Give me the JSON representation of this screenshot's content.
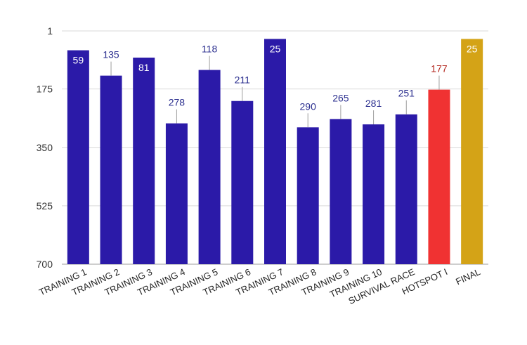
{
  "chart_data": {
    "type": "bar",
    "y_axis_reversed": true,
    "ylim": [
      1,
      700
    ],
    "y_ticks": [
      "1",
      "175",
      "350",
      "525",
      "700"
    ],
    "grid": true,
    "categories": [
      "TRAINING 1",
      "TRAINING 2",
      "TRAINING 3",
      "TRAINING 4",
      "TRAINING 5",
      "TRAINING 6",
      "TRAINING 7",
      "TRAINING 8",
      "TRAINING 9",
      "TRAINING 10",
      "SURVIVAL RACE",
      "HOTSPOT I",
      "FINAL"
    ],
    "values": [
      59,
      135,
      81,
      278,
      118,
      211,
      25,
      290,
      265,
      281,
      251,
      177,
      25
    ],
    "labels": [
      "59",
      "135",
      "81",
      "278",
      "118",
      "211",
      "25",
      "290",
      "265",
      "281",
      "251",
      "177",
      "25"
    ],
    "label_inside": [
      true,
      false,
      true,
      false,
      false,
      false,
      true,
      false,
      false,
      false,
      false,
      false,
      true
    ],
    "colors": [
      "#2b1aa8",
      "#2b1aa8",
      "#2b1aa8",
      "#2b1aa8",
      "#2b1aa8",
      "#2b1aa8",
      "#2b1aa8",
      "#2b1aa8",
      "#2b1aa8",
      "#2b1aa8",
      "#2b1aa8",
      "#f03232",
      "#d4a317"
    ],
    "label_colors": [
      "#ffffff",
      "#2b2f8f",
      "#ffffff",
      "#2b2f8f",
      "#2b2f8f",
      "#2b2f8f",
      "#ffffff",
      "#2b2f8f",
      "#2b2f8f",
      "#2b2f8f",
      "#2b2f8f",
      "#b3261e",
      "#ffffff"
    ]
  }
}
